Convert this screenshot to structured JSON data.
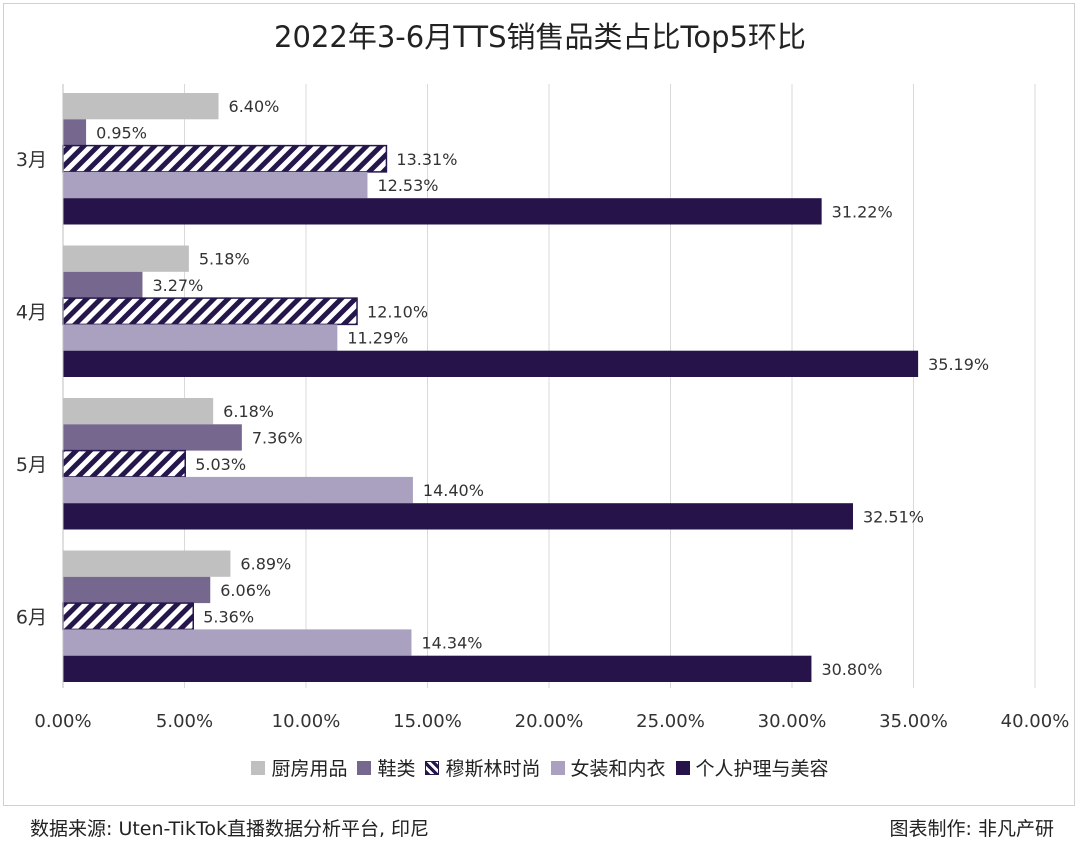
{
  "chart_data": {
    "type": "bar",
    "orientation": "horizontal",
    "title": "2022年3-6月TTS销售品类占比Top5环比",
    "categories": [
      "3月",
      "4月",
      "5月",
      "6月"
    ],
    "series": [
      {
        "name": "厨房用品",
        "color": "#c0c0c0",
        "pattern": "solid",
        "values": [
          6.4,
          5.18,
          6.18,
          6.89
        ]
      },
      {
        "name": "鞋类",
        "color": "#76678f",
        "pattern": "solid",
        "values": [
          0.95,
          3.27,
          7.36,
          6.06
        ]
      },
      {
        "name": "穆斯林时尚",
        "color": "#25174c",
        "pattern": "diagonal-stripes",
        "values": [
          13.31,
          12.1,
          5.03,
          5.36
        ]
      },
      {
        "name": "女装和内衣",
        "color": "#a9a1bf",
        "pattern": "solid",
        "values": [
          12.53,
          11.29,
          14.4,
          14.34
        ]
      },
      {
        "name": "个人护理与美容",
        "color": "#25134a",
        "pattern": "solid",
        "values": [
          31.22,
          35.19,
          32.51,
          30.8
        ]
      }
    ],
    "data_labels": [
      [
        "6.40%",
        "5.18%",
        "6.18%",
        "6.89%"
      ],
      [
        "0.95%",
        "3.27%",
        "7.36%",
        "6.06%"
      ],
      [
        "13.31%",
        "12.10%",
        "5.03%",
        "5.36%"
      ],
      [
        "12.53%",
        "11.29%",
        "14.40%",
        "14.34%"
      ],
      [
        "31.22%",
        "35.19%",
        "32.51%",
        "30.80%"
      ]
    ],
    "xlim": [
      0,
      40
    ],
    "xticks": [
      "0.00%",
      "5.00%",
      "10.00%",
      "15.00%",
      "20.00%",
      "25.00%",
      "30.00%",
      "35.00%",
      "40.00%"
    ],
    "grid": "vertical",
    "legend_position": "bottom"
  },
  "footer": {
    "source": "数据来源: Uten-TikTok直播数据分析平台, 印尼",
    "credit": "图表制作: 非凡产研"
  }
}
